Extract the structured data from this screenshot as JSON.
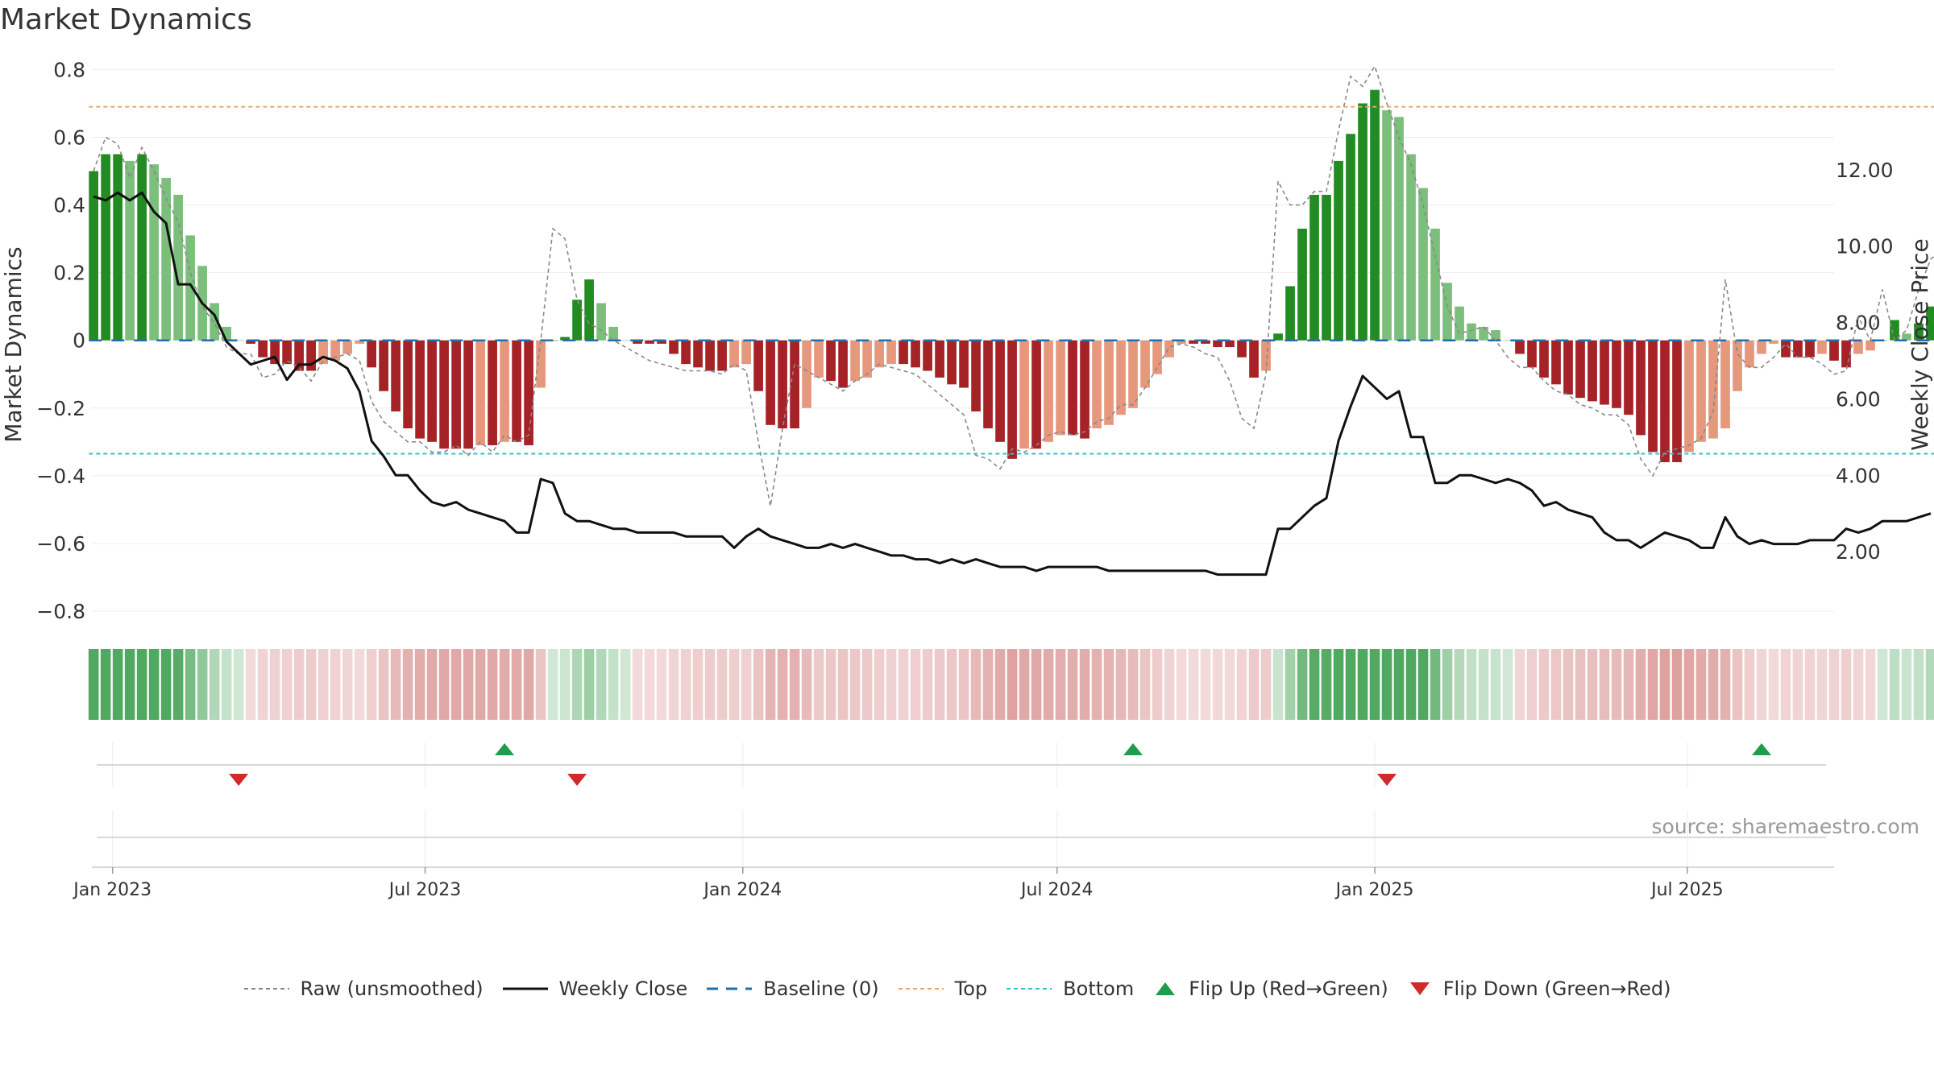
{
  "chart_data": {
    "type": "bar",
    "title": "Market Dynamics",
    "source_text": "source: sharemaestro.com",
    "y_left": {
      "label": "Market Dynamics",
      "lim": [
        -0.85,
        0.82
      ],
      "ticks": [
        0.8,
        0.6,
        0.4,
        0.2,
        0,
        -0.2,
        -0.4,
        -0.6,
        -0.8
      ],
      "tick_labels": [
        "0.8",
        "0.6",
        "0.4",
        "0.2",
        "0",
        "−0.2",
        "−0.4",
        "−0.6",
        "−0.8"
      ]
    },
    "y_right": {
      "label": "Weekly Close Price",
      "lim": [
        0,
        14.8
      ],
      "ticks": [
        12,
        10,
        8,
        6,
        4,
        2
      ],
      "tick_labels": [
        "12.00",
        "10.00",
        "8.00",
        "6.00",
        "4.00",
        "2.00"
      ]
    },
    "x_axis": {
      "start": "2022-12-20",
      "end": "2025-09-24",
      "ticks": [
        "2023-01-01",
        "2023-07-01",
        "2024-01-01",
        "2024-07-01",
        "2025-01-01",
        "2025-07-01"
      ],
      "tick_labels": [
        "Jan 2023",
        "Jul 2023",
        "Jan 2024",
        "Jul 2024",
        "Jan 2025",
        "Jul 2025"
      ]
    },
    "start_week": "2022-12-21",
    "bars": [
      0.5,
      0.55,
      0.55,
      0.53,
      0.55,
      0.52,
      0.48,
      0.43,
      0.31,
      0.22,
      0.11,
      0.04,
      0.0,
      -0.01,
      -0.05,
      -0.07,
      -0.07,
      -0.09,
      -0.09,
      -0.07,
      -0.06,
      -0.04,
      -0.01,
      -0.08,
      -0.15,
      -0.21,
      -0.26,
      -0.29,
      -0.3,
      -0.32,
      -0.32,
      -0.32,
      -0.31,
      -0.31,
      -0.3,
      -0.3,
      -0.31,
      -0.14,
      0.0,
      0.01,
      0.12,
      0.18,
      0.11,
      0.04,
      0.0,
      -0.01,
      -0.01,
      -0.01,
      -0.04,
      -0.07,
      -0.08,
      -0.09,
      -0.09,
      -0.08,
      -0.07,
      -0.15,
      -0.25,
      -0.26,
      -0.26,
      -0.2,
      -0.11,
      -0.12,
      -0.14,
      -0.12,
      -0.11,
      -0.08,
      -0.07,
      -0.07,
      -0.08,
      -0.09,
      -0.11,
      -0.13,
      -0.14,
      -0.21,
      -0.26,
      -0.3,
      -0.35,
      -0.32,
      -0.32,
      -0.3,
      -0.28,
      -0.28,
      -0.29,
      -0.26,
      -0.25,
      -0.22,
      -0.2,
      -0.14,
      -0.1,
      -0.05,
      -0.01,
      -0.01,
      -0.01,
      -0.02,
      -0.02,
      -0.05,
      -0.11,
      -0.09,
      0.02,
      0.16,
      0.33,
      0.43,
      0.43,
      0.53,
      0.61,
      0.7,
      0.74,
      0.68,
      0.66,
      0.55,
      0.45,
      0.33,
      0.17,
      0.1,
      0.05,
      0.04,
      0.03,
      0.0,
      -0.04,
      -0.08,
      -0.11,
      -0.13,
      -0.16,
      -0.17,
      -0.18,
      -0.19,
      -0.2,
      -0.22,
      -0.28,
      -0.33,
      -0.36,
      -0.36,
      -0.33,
      -0.3,
      -0.29,
      -0.26,
      -0.15,
      -0.08,
      -0.04,
      -0.01,
      -0.05,
      -0.05,
      -0.05,
      -0.04,
      -0.06,
      -0.08,
      -0.04,
      -0.03,
      0.0,
      0.06,
      0.02,
      0.05,
      0.1,
      0.13
    ],
    "raw": [
      0.5,
      0.6,
      0.58,
      0.48,
      0.57,
      0.5,
      0.42,
      0.35,
      0.2,
      0.1,
      0.05,
      -0.02,
      -0.04,
      -0.04,
      -0.11,
      -0.1,
      -0.06,
      -0.08,
      -0.12,
      -0.06,
      -0.05,
      -0.04,
      -0.06,
      -0.18,
      -0.24,
      -0.27,
      -0.3,
      -0.3,
      -0.33,
      -0.33,
      -0.31,
      -0.34,
      -0.3,
      -0.33,
      -0.28,
      -0.3,
      -0.28,
      0.0,
      0.33,
      0.3,
      0.12,
      0.05,
      0.03,
      0.0,
      -0.02,
      -0.04,
      -0.06,
      -0.07,
      -0.08,
      -0.09,
      -0.09,
      -0.09,
      -0.1,
      -0.07,
      -0.09,
      -0.3,
      -0.49,
      -0.26,
      -0.07,
      -0.09,
      -0.11,
      -0.13,
      -0.15,
      -0.12,
      -0.1,
      -0.07,
      -0.08,
      -0.09,
      -0.1,
      -0.13,
      -0.16,
      -0.19,
      -0.22,
      -0.34,
      -0.35,
      -0.38,
      -0.32,
      -0.33,
      -0.31,
      -0.28,
      -0.27,
      -0.28,
      -0.27,
      -0.24,
      -0.23,
      -0.19,
      -0.19,
      -0.14,
      -0.08,
      -0.02,
      -0.01,
      -0.02,
      -0.04,
      -0.05,
      -0.12,
      -0.23,
      -0.26,
      -0.1,
      0.47,
      0.4,
      0.4,
      0.44,
      0.44,
      0.62,
      0.78,
      0.75,
      0.81,
      0.7,
      0.6,
      0.52,
      0.4,
      0.25,
      0.1,
      0.02,
      0.03,
      0.04,
      0.0,
      -0.05,
      -0.08,
      -0.08,
      -0.12,
      -0.15,
      -0.16,
      -0.19,
      -0.2,
      -0.22,
      -0.22,
      -0.25,
      -0.35,
      -0.4,
      -0.33,
      -0.32,
      -0.31,
      -0.29,
      -0.21,
      0.18,
      -0.04,
      -0.08,
      -0.08,
      -0.05,
      -0.01,
      -0.05,
      -0.05,
      -0.07,
      -0.1,
      -0.09,
      0.07,
      0.0,
      0.15,
      0.0,
      0.03,
      0.15,
      0.24,
      0.27
    ],
    "close": [
      11.3,
      11.2,
      11.4,
      11.2,
      11.4,
      10.9,
      10.6,
      9.0,
      9.0,
      8.5,
      8.2,
      7.5,
      7.2,
      6.9,
      7.0,
      7.1,
      6.5,
      6.9,
      6.9,
      7.1,
      7.0,
      6.8,
      6.2,
      4.9,
      4.5,
      4.0,
      4.0,
      3.6,
      3.3,
      3.2,
      3.3,
      3.1,
      3.0,
      2.9,
      2.8,
      2.5,
      2.5,
      3.9,
      3.8,
      3.0,
      2.8,
      2.8,
      2.7,
      2.6,
      2.6,
      2.5,
      2.5,
      2.5,
      2.5,
      2.4,
      2.4,
      2.4,
      2.4,
      2.1,
      2.4,
      2.6,
      2.4,
      2.3,
      2.2,
      2.1,
      2.1,
      2.2,
      2.1,
      2.2,
      2.1,
      2.0,
      1.9,
      1.9,
      1.8,
      1.8,
      1.7,
      1.8,
      1.7,
      1.8,
      1.7,
      1.6,
      1.6,
      1.6,
      1.5,
      1.6,
      1.6,
      1.6,
      1.6,
      1.6,
      1.5,
      1.5,
      1.5,
      1.5,
      1.5,
      1.5,
      1.5,
      1.5,
      1.5,
      1.4,
      1.4,
      1.4,
      1.4,
      1.4,
      2.6,
      2.6,
      2.9,
      3.2,
      3.4,
      4.9,
      5.8,
      6.6,
      6.3,
      6.0,
      6.2,
      5.0,
      5.0,
      3.8,
      3.8,
      4.0,
      4.0,
      3.9,
      3.8,
      3.9,
      3.8,
      3.6,
      3.2,
      3.3,
      3.1,
      3.0,
      2.9,
      2.5,
      2.3,
      2.3,
      2.1,
      2.3,
      2.5,
      2.4,
      2.3,
      2.1,
      2.1,
      2.9,
      2.4,
      2.2,
      2.3,
      2.2,
      2.2,
      2.2,
      2.3,
      2.3,
      2.3,
      2.6,
      2.5,
      2.6,
      2.8,
      2.8,
      2.8,
      2.9,
      3.0
    ],
    "top_level": 0.69,
    "bottom_level": -0.335,
    "baseline": 0,
    "flip_up_dates": [
      "2023-08-16",
      "2024-08-14",
      "2025-08-13"
    ],
    "flip_down_dates": [
      "2023-03-15",
      "2023-09-27",
      "2025-01-08"
    ],
    "colors": {
      "strong_green": "#228B22",
      "light_green": "#7CBF7C",
      "strong_red": "#A52226",
      "light_red": "#E6987D",
      "raw": "#888888",
      "close": "#111111",
      "baseline": "#1F6FB2",
      "top": "#E4A96A",
      "bottom": "#2EC4CC",
      "flip_up": "#1E9E4A",
      "flip_down": "#D02A2A"
    },
    "legend": {
      "raw": "Raw (unsmoothed)",
      "close": "Weekly Close",
      "baseline": "Baseline (0)",
      "top": "Top",
      "bottom": "Bottom",
      "flip_up": "Flip Up (Red→Green)",
      "flip_down": "Flip Down (Green→Red)"
    }
  }
}
